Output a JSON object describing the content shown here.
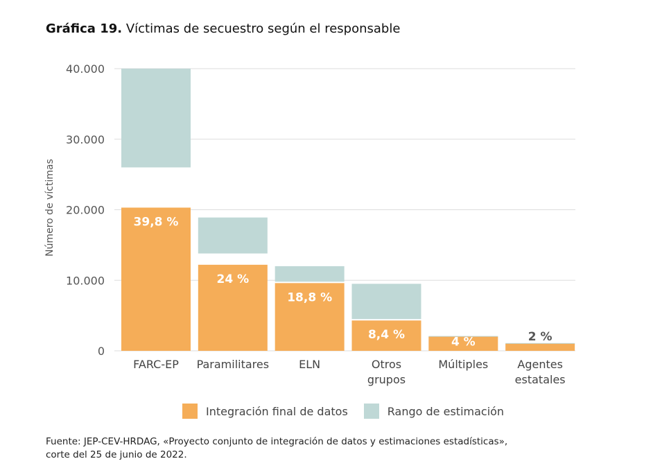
{
  "title": {
    "number": "Gráfica 19.",
    "text": "Víctimas de secuestro según el responsable"
  },
  "colors": {
    "final": "#f5ad58",
    "range": "#bfd8d6",
    "grid": "#dddddd",
    "axis_text": "#555555"
  },
  "chart_data": {
    "type": "bar",
    "title": "Víctimas de secuestro según el responsable",
    "xlabel": "",
    "ylabel": "Número de víctimas",
    "ylim": [
      0,
      40000
    ],
    "yticks": [
      {
        "value": 0,
        "label": "0"
      },
      {
        "value": 10000,
        "label": "10.000"
      },
      {
        "value": 20000,
        "label": "20.000"
      },
      {
        "value": 30000,
        "label": "30.000"
      },
      {
        "value": 40000,
        "label": "40.000"
      }
    ],
    "categories": [
      {
        "lines": [
          "FARC-EP"
        ]
      },
      {
        "lines": [
          "Paramilitares"
        ]
      },
      {
        "lines": [
          "ELN"
        ]
      },
      {
        "lines": [
          "Otros",
          "grupos"
        ]
      },
      {
        "lines": [
          "Múltiples"
        ]
      },
      {
        "lines": [
          "Agentes",
          "estatales"
        ]
      }
    ],
    "series": [
      {
        "name": "Integración final de datos",
        "values": [
          20300,
          12200,
          9600,
          4300,
          2000,
          1000
        ],
        "labels": [
          "39,8 %",
          "24 %",
          "18,8 %",
          "8,4 %",
          "4 %",
          "2 %"
        ]
      },
      {
        "name": "Rango de estimación",
        "ranges": [
          [
            26000,
            40000
          ],
          [
            13800,
            18900
          ],
          [
            9800,
            12000
          ],
          [
            4500,
            9500
          ],
          [
            1900,
            2100
          ],
          [
            900,
            1100
          ]
        ]
      }
    ],
    "grid": true,
    "legend": "bottom"
  },
  "source": [
    "Fuente: JEP-CEV-HRDAG, «Proyecto conjunto de integración de datos y estimaciones estadísticas»,",
    "corte del 25 de junio de 2022."
  ]
}
